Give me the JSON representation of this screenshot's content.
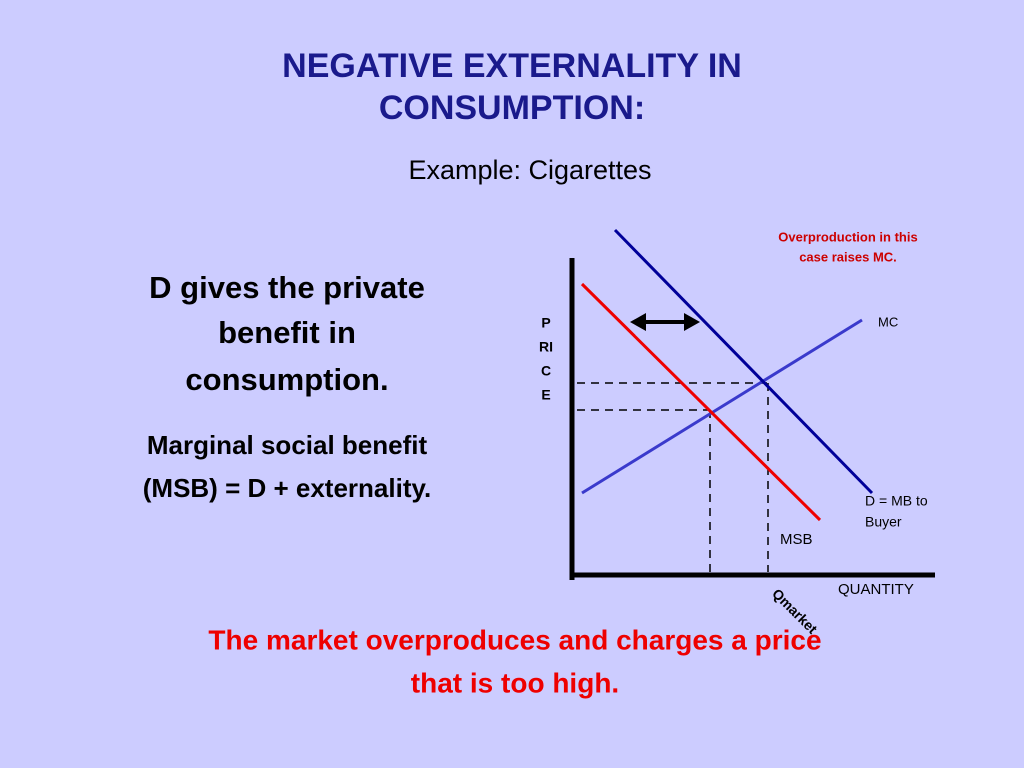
{
  "title": {
    "lines": [
      "NEGATIVE EXTERNALITY IN",
      "CONSUMPTION:"
    ]
  },
  "subtitle": "Example:  Cigarettes",
  "left_text": {
    "point_1": [
      "D gives the private",
      "benefit in",
      "consumption."
    ],
    "point_2": [
      "Marginal social benefit",
      "(MSB) = D + externality."
    ]
  },
  "diagram": {
    "note": [
      "Overproduction in this",
      "case raises MC."
    ],
    "y_axis_label": [
      "P",
      "RI",
      "C",
      "E"
    ],
    "x_axis_label": "QUANTITY",
    "curves": {
      "mc": "MC",
      "demand": [
        "D = MB to",
        "Buyer"
      ],
      "msb": "MSB"
    },
    "q_marker": "Qmarket"
  },
  "footer": [
    "The market overproduces and charges a price",
    "that is too high."
  ]
}
